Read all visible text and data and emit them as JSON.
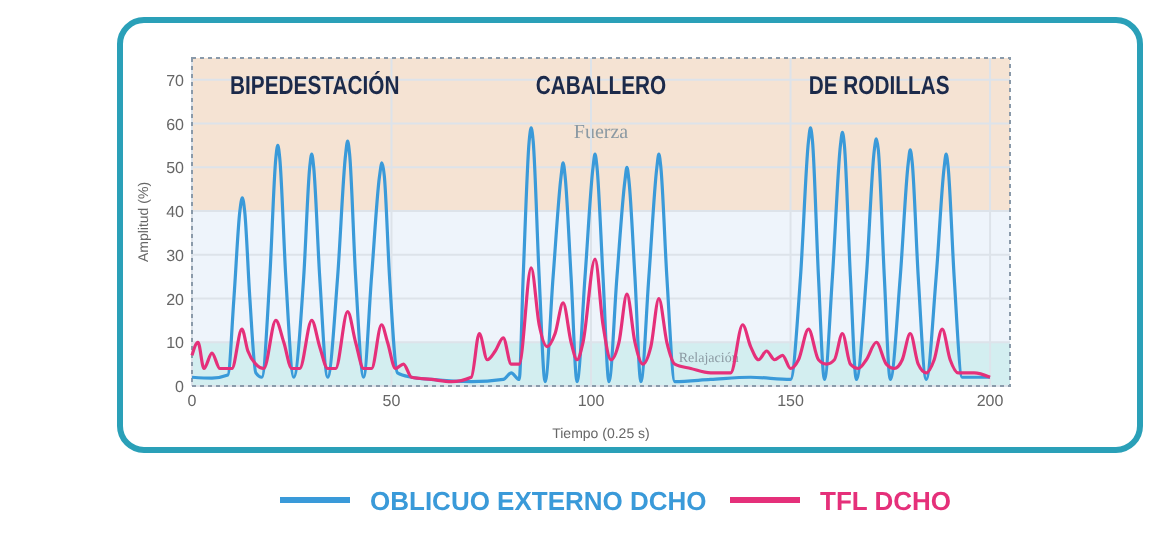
{
  "chart_data": {
    "type": "line",
    "xlabel": "Tiempo (0.25 s)",
    "ylabel": "Amplitud (%)",
    "xlim": [
      0,
      205
    ],
    "ylim": [
      0,
      75
    ],
    "xticks": [
      0,
      50,
      100,
      150,
      200
    ],
    "yticks": [
      0,
      10,
      20,
      30,
      40,
      50,
      60,
      70
    ],
    "grid": true,
    "legend": "bottom",
    "marker": "none",
    "line_style": "solid",
    "bands": [
      {
        "axis": "y",
        "from": 0,
        "to": 10,
        "label": "Relajación",
        "color": "#d3eef0"
      },
      {
        "axis": "y",
        "from": 10,
        "to": 40,
        "label": null,
        "color": "#eef4fb"
      },
      {
        "axis": "y",
        "from": 40,
        "to": 75,
        "label": "Fuerza",
        "color": "#f5e3d3"
      }
    ],
    "annotations": [
      "BIPEDESTACIÓN",
      "CABALLERO",
      "DE RODILLAS"
    ],
    "series": [
      {
        "name": "OBLICUO EXTERNO DCHO",
        "color": "#3a9ad9",
        "x": [
          0,
          5,
          9,
          10.5,
          12,
          12.6,
          13.2,
          14.5,
          16,
          17.5,
          19.5,
          21,
          21.5,
          22,
          23.5,
          25.5,
          28,
          29.5,
          30,
          30.5,
          32,
          34,
          36.5,
          38.5,
          39,
          39.5,
          41,
          43,
          45,
          47,
          47.6,
          48.2,
          49.5,
          51.5,
          55,
          60,
          70,
          78,
          80,
          82,
          83,
          84.5,
          85,
          85.5,
          87,
          88.5,
          90.5,
          92.5,
          93,
          93.5,
          95,
          96.5,
          98.5,
          100.5,
          101,
          101.5,
          103,
          104.5,
          106.5,
          108.5,
          109,
          109.5,
          111,
          112.5,
          114.5,
          116.5,
          117,
          117.5,
          119,
          121,
          130,
          140,
          150,
          152.5,
          154.5,
          155,
          155.5,
          157,
          158.5,
          160.5,
          162.5,
          163,
          163.5,
          165,
          166.5,
          169,
          171,
          171.5,
          172,
          173.5,
          175,
          177.5,
          179.5,
          180,
          180.5,
          182,
          184,
          186.5,
          188.5,
          189,
          189.5,
          191,
          193,
          200
        ],
        "values": [
          2,
          1.8,
          2.5,
          20,
          40,
          43,
          40,
          20,
          3,
          2,
          25,
          52,
          55,
          52,
          25,
          2,
          25,
          50,
          53,
          50,
          25,
          2,
          25,
          53,
          56,
          53,
          25,
          2,
          25,
          48,
          51,
          48,
          25,
          3,
          2,
          1.5,
          1,
          1.5,
          3,
          1.5,
          25,
          56,
          59,
          56,
          25,
          1,
          25,
          48,
          51,
          48,
          25,
          1,
          25,
          50,
          53,
          50,
          25,
          1,
          25,
          47,
          50,
          47,
          25,
          1,
          25,
          50,
          53,
          50,
          25,
          1,
          1.5,
          2,
          1.5,
          25,
          56,
          59,
          56,
          25,
          1.5,
          25,
          55,
          58,
          55,
          25,
          1.5,
          25,
          54,
          56.5,
          54,
          25,
          1.5,
          25,
          51,
          54,
          51,
          25,
          1.5,
          25,
          50,
          53,
          50,
          25,
          2,
          2
        ]
      },
      {
        "name": "TFL DCHO",
        "color": "#e5307a",
        "x": [
          0,
          1.5,
          3,
          5,
          7,
          10,
          12.5,
          14,
          16,
          18,
          21,
          23,
          25,
          27,
          30,
          32,
          34,
          36,
          39,
          41,
          43,
          45,
          47.5,
          49,
          51,
          53,
          55,
          60,
          65,
          70,
          72,
          74,
          76,
          78,
          80,
          82,
          85,
          87,
          89,
          91,
          93,
          95,
          96.5,
          98,
          101,
          103,
          105,
          107,
          109,
          111,
          113,
          115,
          117,
          119,
          121,
          125,
          130,
          135,
          138,
          140,
          142,
          144,
          146,
          148,
          150,
          152,
          154.5,
          157,
          159,
          161,
          163,
          165,
          167,
          169,
          171.5,
          174,
          176,
          178,
          180,
          182,
          184,
          186,
          188,
          190,
          192,
          196,
          200
        ],
        "values": [
          7,
          10,
          4,
          7.5,
          4,
          4,
          13,
          8,
          5,
          4,
          15,
          10,
          4,
          4,
          15,
          9,
          4,
          4,
          17,
          10,
          4,
          4,
          14,
          10,
          4,
          5,
          2,
          1.5,
          1,
          2,
          12,
          6,
          8,
          11,
          5,
          5,
          27,
          14,
          9,
          12,
          19,
          10,
          6,
          10,
          29,
          14,
          6,
          10,
          21,
          10,
          5,
          9,
          20,
          10,
          5,
          4,
          3,
          3,
          14,
          9,
          6,
          8,
          6,
          7,
          4,
          6,
          13,
          6,
          5,
          6,
          12,
          5,
          4,
          6,
          10,
          5,
          4,
          6,
          12,
          5,
          3,
          6,
          13,
          6,
          3,
          3,
          2
        ]
      }
    ]
  }
}
